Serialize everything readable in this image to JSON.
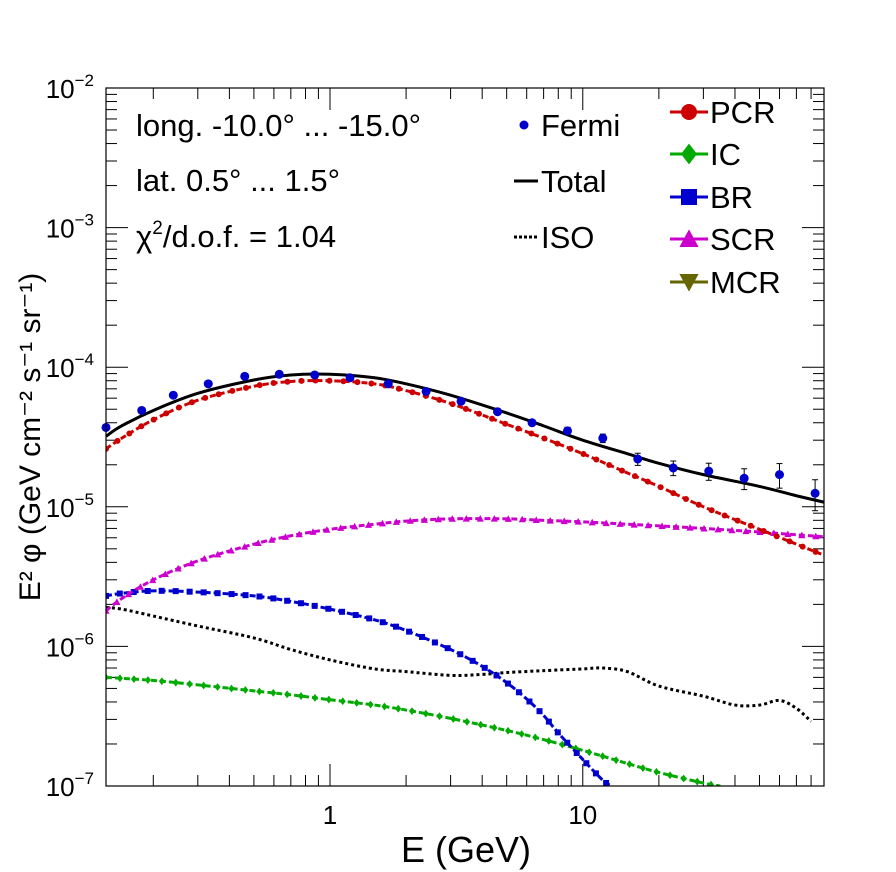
{
  "chart_data": {
    "type": "line",
    "xscale": "log",
    "yscale": "log",
    "xlim": [
      0.13,
      90
    ],
    "ylim": [
      1e-07,
      0.01
    ],
    "xlabel": "E (GeV)",
    "ylabel_text": "E² φ (GeV cm⁻² s⁻¹ sr⁻¹)",
    "x_ticks": [
      {
        "value": 1,
        "label": "1"
      },
      {
        "value": 10,
        "label": "10"
      }
    ],
    "y_ticks": [
      {
        "value": 1e-07,
        "base": "10",
        "exp": "−7"
      },
      {
        "value": 1e-06,
        "base": "10",
        "exp": "−6"
      },
      {
        "value": 1e-05,
        "base": "10",
        "exp": "−5"
      },
      {
        "value": 0.0001,
        "base": "10",
        "exp": "−4"
      },
      {
        "value": 0.001,
        "base": "10",
        "exp": "−3"
      },
      {
        "value": 0.01,
        "base": "10",
        "exp": "−2"
      }
    ],
    "annotations": {
      "longitude": "long. -10.0° ... -15.0°",
      "latitude": "lat. 0.5° ... 1.5°",
      "chi2_symbol": "χ",
      "chi2_exp": "2",
      "chi2_rest": "/d.o.f. = 1.04"
    },
    "legend_left": [
      {
        "key": "fermi",
        "label": "Fermi",
        "color": "#0000cc",
        "marker": "circle-small"
      },
      {
        "key": "total",
        "label": "Total",
        "color": "#000000",
        "marker": "line"
      },
      {
        "key": "iso",
        "label": "ISO",
        "color": "#000000",
        "marker": "dotted"
      }
    ],
    "legend_right": [
      {
        "key": "pcr",
        "label": "PCR",
        "color": "#cc0000",
        "marker": "circle"
      },
      {
        "key": "ic",
        "label": "IC",
        "color": "#00aa00",
        "marker": "diamond"
      },
      {
        "key": "br",
        "label": "BR",
        "color": "#0000cc",
        "marker": "square"
      },
      {
        "key": "scr",
        "label": "SCR",
        "color": "#cc00cc",
        "marker": "triangle-up"
      },
      {
        "key": "mcr",
        "label": "MCR",
        "color": "#666600",
        "marker": "triangle-down"
      }
    ],
    "series": [
      {
        "name": "Total",
        "key": "total",
        "color": "#000000",
        "style": "solid",
        "width": 3,
        "x": [
          0.13,
          0.15,
          0.2,
          0.3,
          0.5,
          0.7,
          1.0,
          1.5,
          2.0,
          3.0,
          5.0,
          7.0,
          10,
          15,
          20,
          30,
          50,
          70,
          90
        ],
        "y": [
          3.2e-05,
          3.8e-05,
          4.9e-05,
          6.5e-05,
          8.1e-05,
          8.8e-05,
          8.9e-05,
          8.4e-05,
          7.6e-05,
          6.3e-05,
          4.7e-05,
          3.8e-05,
          3e-05,
          2.4e-05,
          2.05e-05,
          1.7e-05,
          1.4e-05,
          1.2e-05,
          1.08e-05
        ]
      },
      {
        "name": "PCR",
        "key": "pcr",
        "color": "#cc0000",
        "style": "dashed",
        "marker": "circle",
        "width": 3,
        "x": [
          0.13,
          0.15,
          0.2,
          0.3,
          0.5,
          0.7,
          1.0,
          1.5,
          2.0,
          3.0,
          5.0,
          7.0,
          10,
          15,
          20,
          30,
          50,
          70,
          90
        ],
        "y": [
          2.6e-05,
          3.1e-05,
          4.2e-05,
          5.8e-05,
          7.3e-05,
          7.9e-05,
          8e-05,
          7.6e-05,
          6.8e-05,
          5.5e-05,
          3.9e-05,
          3.1e-05,
          2.4e-05,
          1.75e-05,
          1.4e-05,
          1e-05,
          6.9e-06,
          5.4e-06,
          4.5e-06
        ]
      },
      {
        "name": "SCR",
        "key": "scr",
        "color": "#cc00cc",
        "style": "dashed",
        "marker": "triangle-up",
        "width": 3,
        "x": [
          0.13,
          0.15,
          0.2,
          0.3,
          0.5,
          0.7,
          1.0,
          1.5,
          2.0,
          3.0,
          5.0,
          7.0,
          10,
          15,
          20,
          30,
          50,
          70,
          90
        ],
        "y": [
          1.8e-06,
          2.2e-06,
          3e-06,
          4.1e-06,
          5.4e-06,
          6.2e-06,
          6.9e-06,
          7.5e-06,
          7.9e-06,
          8.2e-06,
          8.2e-06,
          8e-06,
          7.8e-06,
          7.5e-06,
          7.3e-06,
          7e-06,
          6.6e-06,
          6.3e-06,
          6.1e-06
        ]
      },
      {
        "name": "BR",
        "key": "br",
        "color": "#0000cc",
        "style": "dashed",
        "marker": "square",
        "width": 3,
        "x": [
          0.13,
          0.15,
          0.2,
          0.3,
          0.5,
          0.7,
          1.0,
          1.5,
          2.0,
          3.0,
          4.0,
          5.0,
          6.0,
          7.0,
          8.0,
          10,
          12,
          13
        ],
        "y": [
          2.3e-06,
          2.4e-06,
          2.5e-06,
          2.45e-06,
          2.3e-06,
          2.1e-06,
          1.85e-06,
          1.55e-06,
          1.3e-06,
          9.5e-07,
          7.2e-07,
          5.5e-07,
          4.2e-07,
          3.2e-07,
          2.4e-07,
          1.55e-07,
          1.1e-07,
          1e-07
        ]
      },
      {
        "name": "ISO",
        "key": "iso",
        "color": "#000000",
        "style": "dotted",
        "width": 3,
        "x": [
          0.13,
          0.15,
          0.2,
          0.3,
          0.5,
          0.7,
          1.0,
          1.5,
          2.0,
          3.0,
          4.0,
          5.0,
          7.0,
          10,
          12,
          15,
          20,
          30,
          40,
          50,
          60,
          70,
          80
        ],
        "y": [
          1.9e-06,
          1.85e-06,
          1.65e-06,
          1.4e-06,
          1.15e-06,
          9.5e-07,
          8e-07,
          6.9e-07,
          6.6e-07,
          6.2e-07,
          6.3e-07,
          6.5e-07,
          6.7e-07,
          6.9e-07,
          7e-07,
          6.6e-07,
          5.2e-07,
          4.4e-07,
          3.8e-07,
          3.8e-07,
          4.1e-07,
          3.6e-07,
          2.9e-07
        ]
      },
      {
        "name": "IC",
        "key": "ic",
        "color": "#00aa00",
        "style": "dashed",
        "marker": "diamond",
        "width": 3,
        "x": [
          0.13,
          0.2,
          0.3,
          0.5,
          0.7,
          1.0,
          1.5,
          2.0,
          3.0,
          5.0,
          7.0,
          10,
          15,
          20,
          30,
          35
        ],
        "y": [
          6e-07,
          5.7e-07,
          5.3e-07,
          4.8e-07,
          4.5e-07,
          4.15e-07,
          3.8e-07,
          3.5e-07,
          3.05e-07,
          2.5e-07,
          2.15e-07,
          1.8e-07,
          1.45e-07,
          1.25e-07,
          1.05e-07,
          1e-07
        ]
      }
    ],
    "fermi_points": {
      "name": "Fermi",
      "color": "#0000cc",
      "x": [
        0.13,
        0.18,
        0.24,
        0.33,
        0.46,
        0.63,
        0.87,
        1.2,
        1.7,
        2.4,
        3.3,
        4.6,
        6.3,
        8.7,
        12,
        16.5,
        22.8,
        31.5,
        43.5,
        60,
        83
      ],
      "y": [
        3.7e-05,
        4.9e-05,
        6.3e-05,
        7.6e-05,
        8.6e-05,
        8.9e-05,
        8.8e-05,
        8.4e-05,
        7.6e-05,
        6.7e-05,
        5.7e-05,
        4.8e-05,
        4e-05,
        3.5e-05,
        3.1e-05,
        2.2e-05,
        1.9e-05,
        1.8e-05,
        1.6e-05,
        1.7e-05,
        1.25e-05
      ],
      "err_frac": [
        0.04,
        0.03,
        0.03,
        0.03,
        0.03,
        0.03,
        0.03,
        0.03,
        0.03,
        0.03,
        0.04,
        0.04,
        0.05,
        0.06,
        0.07,
        0.1,
        0.12,
        0.14,
        0.17,
        0.2,
        0.25
      ]
    }
  }
}
